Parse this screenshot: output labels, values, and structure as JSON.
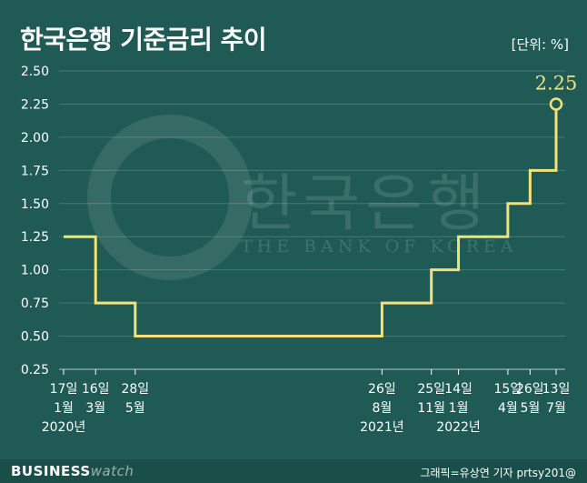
{
  "title": "한국은행 기준금리 추이",
  "unit": "[단위: %]",
  "watermark": {
    "korean": "한국은행",
    "english": "THE BANK OF KOREA"
  },
  "footer": {
    "brand_bold": "BUSINESS",
    "brand_light": "watch",
    "credit": "그래픽=유상연 기자 prtsy201@"
  },
  "colors": {
    "background": "#1f5a54",
    "line": "#f3e27a",
    "text": "#ffffff"
  },
  "chart_data": {
    "type": "line",
    "step": true,
    "title": "한국은행 기준금리 추이",
    "ylabel": "",
    "xlabel": "",
    "ylim": [
      0.25,
      2.5
    ],
    "yticks": [
      "0.25",
      "0.50",
      "0.75",
      "1.00",
      "1.25",
      "1.50",
      "1.75",
      "2.00",
      "2.25",
      "2.50"
    ],
    "grid": true,
    "dates": [
      {
        "date": "2020-01-17",
        "day": "17일",
        "month": "1월",
        "year": "2020년",
        "value": 1.25
      },
      {
        "date": "2020-03-16",
        "day": "16일",
        "month": "3월",
        "year": "",
        "value": 0.75
      },
      {
        "date": "2020-05-28",
        "day": "28일",
        "month": "5월",
        "year": "",
        "value": 0.5
      },
      {
        "date": "2021-08-26",
        "day": "26일",
        "month": "8월",
        "year": "2021년",
        "value": 0.75
      },
      {
        "date": "2021-11-25",
        "day": "25일",
        "month": "11월",
        "year": "",
        "value": 1.0
      },
      {
        "date": "2022-01-14",
        "day": "14일",
        "month": "1월",
        "year": "2022년",
        "value": 1.25
      },
      {
        "date": "2022-04-15",
        "day": "15일",
        "month": "4월",
        "year": "",
        "value": 1.5
      },
      {
        "date": "2022-05-26",
        "day": "26일",
        "month": "5월",
        "year": "",
        "value": 1.75
      },
      {
        "date": "2022-07-13",
        "day": "13일",
        "month": "7월",
        "year": "",
        "value": 2.25
      }
    ],
    "last_label": "2.25"
  }
}
